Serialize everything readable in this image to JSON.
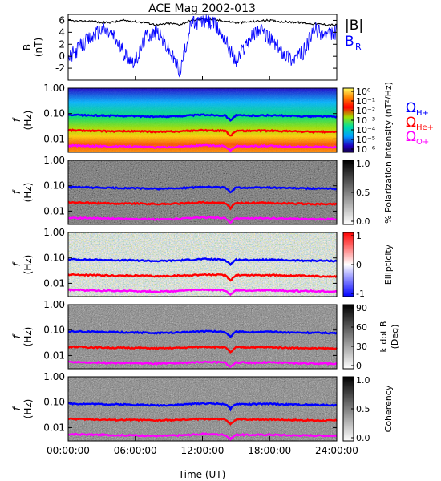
{
  "title": "ACE Mag 2002-013",
  "xlabel": "Time (UT)",
  "xticks": [
    "00:00:00",
    "06:00:00",
    "12:00:00",
    "18:00:00",
    "24:00:00"
  ],
  "colors": {
    "B_total": "#000000",
    "B_R": "#0000ff",
    "H_plus": "#0000ff",
    "He_plus": "#ff0000",
    "O_plus": "#ff00ff"
  },
  "legend_top": {
    "B_total": "|B|",
    "B_R": "B",
    "B_R_sub": "R"
  },
  "legend_ions": [
    {
      "symbol": "Ω",
      "sub": "H+",
      "color": "#0000ff"
    },
    {
      "symbol": "Ω",
      "sub": "He+",
      "color": "#ff0000"
    },
    {
      "symbol": "Ω",
      "sub": "O+",
      "color": "#ff00ff"
    }
  ],
  "freq_yticks": [
    "1.00",
    "0.10",
    "0.01"
  ],
  "chart_data": [
    {
      "type": "line",
      "panel": "magnetic field",
      "ylabel": "B",
      "yunit": "(nT)",
      "ylim": [
        -4,
        7
      ],
      "yticks": [
        "6",
        "4",
        "2",
        "0",
        "-2"
      ],
      "x_hours": [
        0,
        1,
        2,
        3,
        4,
        5,
        6,
        7,
        8,
        9,
        10,
        11,
        12,
        13,
        14,
        15,
        16,
        17,
        18,
        19,
        20,
        21,
        22,
        23,
        24
      ],
      "series": [
        {
          "name": "|B|",
          "values": [
            6.0,
            5.8,
            5.9,
            5.6,
            5.7,
            6.0,
            5.8,
            5.6,
            5.2,
            5.5,
            5.3,
            6.0,
            6.2,
            6.1,
            5.9,
            5.6,
            5.7,
            5.9,
            6.0,
            5.8,
            5.7,
            5.6,
            5.4,
            5.3,
            5.2
          ]
        },
        {
          "name": "B_R",
          "values": [
            -0.5,
            1.5,
            3.0,
            4.5,
            3.5,
            0.5,
            -1.0,
            3.5,
            4.0,
            1.0,
            -2.5,
            5.5,
            5.8,
            5.5,
            3.0,
            -1.0,
            2.5,
            4.5,
            3.0,
            1.0,
            -0.5,
            0.5,
            4.5,
            3.5,
            4.0
          ]
        }
      ]
    },
    {
      "type": "heatmap",
      "panel": "intensity",
      "ylabel": "f",
      "yunit": "(Hz)",
      "yscale": "log",
      "ylim": [
        0.003,
        1.0
      ],
      "colorbar_label": "Intensity (nT²/Hz)",
      "colorbar_ticks": [
        "10⁰",
        "10⁻¹",
        "10⁻²",
        "10⁻³",
        "10⁻⁴",
        "10⁻⁵",
        "10⁻⁶"
      ]
    },
    {
      "type": "heatmap",
      "panel": "polarization",
      "ylabel": "f",
      "yunit": "(Hz)",
      "yscale": "log",
      "ylim": [
        0.003,
        1.0
      ],
      "colorbar_label": "% Polarization",
      "colorbar_ticks": [
        "1.0",
        "0.5",
        "0.0"
      ]
    },
    {
      "type": "heatmap",
      "panel": "ellipticity",
      "ylabel": "f",
      "yunit": "(Hz)",
      "yscale": "log",
      "ylim": [
        0.003,
        1.0
      ],
      "colorbar_label": "Ellipticity",
      "colorbar_ticks": [
        "1",
        "0",
        "-1"
      ]
    },
    {
      "type": "heatmap",
      "panel": "k dot B",
      "ylabel": "f",
      "yunit": "(Hz)",
      "yscale": "log",
      "ylim": [
        0.003,
        1.0
      ],
      "colorbar_label": "k dot B",
      "colorbar_unit": "(Deg)",
      "colorbar_ticks": [
        "90",
        "60",
        "30",
        "0"
      ]
    },
    {
      "type": "heatmap",
      "panel": "coherency",
      "ylabel": "f",
      "yunit": "(Hz)",
      "yscale": "log",
      "ylim": [
        0.003,
        1.0
      ],
      "colorbar_label": "Coherency",
      "colorbar_ticks": [
        "1.0",
        "0.5",
        "0.0"
      ]
    },
    {
      "type": "line",
      "panel": "gyrofrequency overlays (all spectral panels)",
      "x_hours": [
        0,
        2,
        4,
        6,
        8,
        10,
        12,
        14,
        14.5,
        15,
        16,
        18,
        20,
        22,
        24
      ],
      "series": [
        {
          "name": "Ω H+",
          "values": [
            0.088,
            0.085,
            0.082,
            0.08,
            0.075,
            0.08,
            0.09,
            0.085,
            0.055,
            0.085,
            0.083,
            0.085,
            0.08,
            0.078,
            0.076
          ]
        },
        {
          "name": "Ω He+",
          "values": [
            0.022,
            0.021,
            0.02,
            0.02,
            0.019,
            0.02,
            0.022,
            0.021,
            0.013,
            0.021,
            0.021,
            0.021,
            0.02,
            0.019,
            0.019
          ]
        },
        {
          "name": "Ω O+",
          "values": [
            0.0055,
            0.0053,
            0.0051,
            0.005,
            0.0047,
            0.005,
            0.0056,
            0.0053,
            0.0035,
            0.0053,
            0.0052,
            0.0053,
            0.005,
            0.0049,
            0.0048
          ]
        }
      ]
    }
  ]
}
